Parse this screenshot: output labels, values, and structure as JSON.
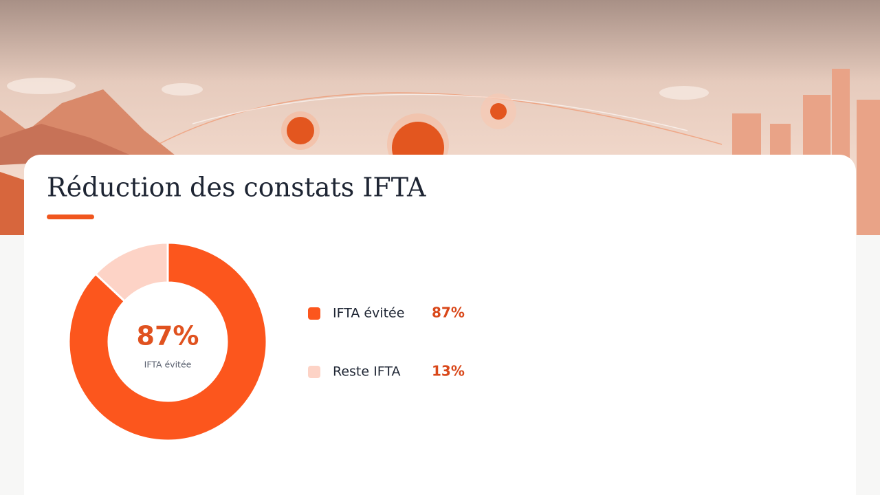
{
  "chart_data": {
    "type": "donut",
    "title": "Réduction des constats IFTA",
    "categories": [
      "IFTA évitée",
      "Reste IFTA"
    ],
    "values": [
      87,
      13
    ],
    "value_labels": [
      "87%",
      "13%"
    ],
    "colors": [
      "#fc561d",
      "#fdd3c6"
    ]
  }
}
